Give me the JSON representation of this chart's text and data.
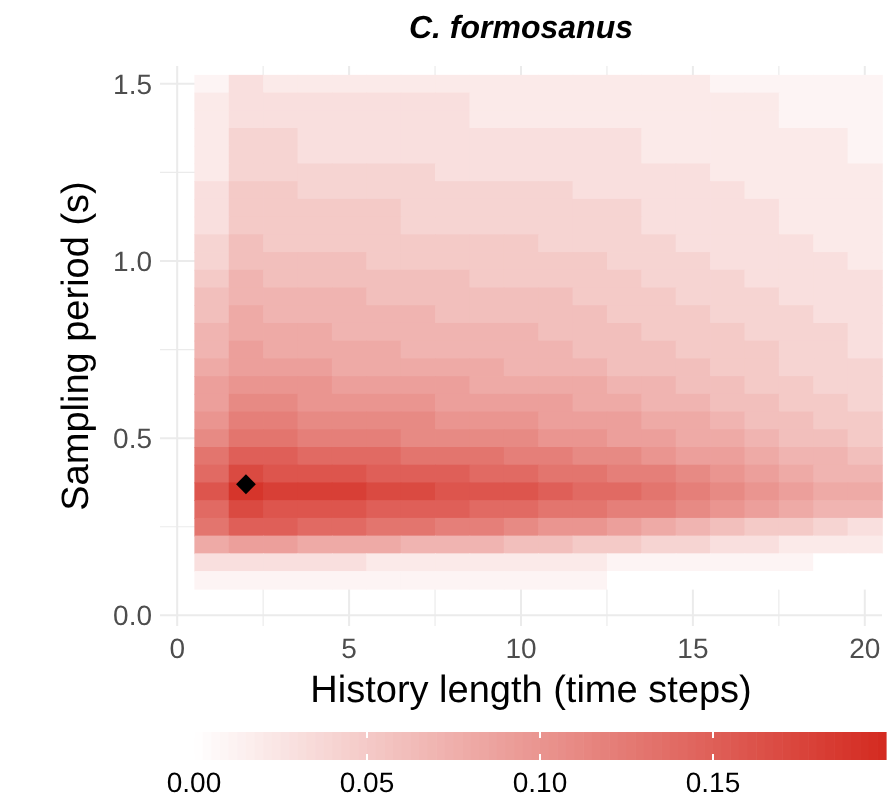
{
  "chart_data": {
    "type": "heatmap",
    "title": "C. formosanus",
    "xlabel": "History length (time steps)",
    "ylabel": "Sampling period (s)",
    "x": [
      1,
      2,
      3,
      4,
      5,
      6,
      7,
      8,
      9,
      10,
      11,
      12,
      13,
      14,
      15,
      16,
      17,
      18,
      19,
      20
    ],
    "y": [
      1.5,
      1.45,
      1.4,
      1.35,
      1.3,
      1.25,
      1.2,
      1.15,
      1.1,
      1.05,
      1.0,
      0.95,
      0.9,
      0.85,
      0.8,
      0.75,
      0.7,
      0.65,
      0.6,
      0.55,
      0.5,
      0.45,
      0.4,
      0.35,
      0.3,
      0.25,
      0.2,
      0.15,
      0.1
    ],
    "cells": [
      [
        0.01,
        0.03,
        0.02,
        0.02,
        0.02,
        0.02,
        0.02,
        0.02,
        0.02,
        0.02,
        0.02,
        0.02,
        0.02,
        0.02,
        0.02,
        0.01,
        0.01,
        0.01,
        0.01,
        0.01
      ],
      [
        0.02,
        0.03,
        0.03,
        0.03,
        0.03,
        0.03,
        0.03,
        0.03,
        0.02,
        0.02,
        0.02,
        0.02,
        0.02,
        0.02,
        0.02,
        0.02,
        0.02,
        0.01,
        0.01,
        0.01
      ],
      [
        0.02,
        0.03,
        0.03,
        0.03,
        0.03,
        0.03,
        0.03,
        0.03,
        0.02,
        0.02,
        0.02,
        0.02,
        0.02,
        0.02,
        0.02,
        0.02,
        0.02,
        0.01,
        0.01,
        0.01
      ],
      [
        0.02,
        0.04,
        0.04,
        0.03,
        0.03,
        0.03,
        0.03,
        0.03,
        0.03,
        0.03,
        0.03,
        0.03,
        0.03,
        0.02,
        0.02,
        0.02,
        0.02,
        0.02,
        0.02,
        0.01
      ],
      [
        0.02,
        0.04,
        0.04,
        0.03,
        0.03,
        0.03,
        0.03,
        0.03,
        0.03,
        0.03,
        0.03,
        0.03,
        0.03,
        0.02,
        0.02,
        0.02,
        0.02,
        0.02,
        0.02,
        0.01
      ],
      [
        0.02,
        0.04,
        0.04,
        0.04,
        0.04,
        0.04,
        0.04,
        0.03,
        0.03,
        0.03,
        0.03,
        0.03,
        0.03,
        0.03,
        0.03,
        0.02,
        0.02,
        0.02,
        0.02,
        0.02
      ],
      [
        0.03,
        0.05,
        0.05,
        0.04,
        0.04,
        0.04,
        0.04,
        0.04,
        0.04,
        0.04,
        0.04,
        0.03,
        0.03,
        0.03,
        0.03,
        0.03,
        0.02,
        0.02,
        0.02,
        0.02
      ],
      [
        0.03,
        0.05,
        0.05,
        0.05,
        0.05,
        0.05,
        0.04,
        0.04,
        0.04,
        0.04,
        0.04,
        0.04,
        0.04,
        0.03,
        0.03,
        0.03,
        0.03,
        0.02,
        0.02,
        0.02
      ],
      [
        0.03,
        0.05,
        0.05,
        0.05,
        0.05,
        0.05,
        0.04,
        0.04,
        0.04,
        0.04,
        0.04,
        0.04,
        0.04,
        0.03,
        0.03,
        0.03,
        0.03,
        0.02,
        0.02,
        0.02
      ],
      [
        0.04,
        0.06,
        0.05,
        0.05,
        0.05,
        0.05,
        0.05,
        0.05,
        0.05,
        0.05,
        0.04,
        0.04,
        0.04,
        0.04,
        0.03,
        0.03,
        0.03,
        0.03,
        0.02,
        0.02
      ],
      [
        0.04,
        0.06,
        0.06,
        0.06,
        0.06,
        0.05,
        0.05,
        0.05,
        0.05,
        0.05,
        0.05,
        0.05,
        0.04,
        0.04,
        0.04,
        0.03,
        0.03,
        0.03,
        0.03,
        0.02
      ],
      [
        0.05,
        0.07,
        0.06,
        0.06,
        0.06,
        0.06,
        0.06,
        0.06,
        0.05,
        0.05,
        0.05,
        0.05,
        0.05,
        0.04,
        0.04,
        0.04,
        0.03,
        0.03,
        0.03,
        0.03
      ],
      [
        0.06,
        0.07,
        0.07,
        0.07,
        0.07,
        0.06,
        0.06,
        0.06,
        0.06,
        0.06,
        0.06,
        0.05,
        0.05,
        0.05,
        0.04,
        0.04,
        0.04,
        0.03,
        0.03,
        0.03
      ],
      [
        0.06,
        0.08,
        0.07,
        0.07,
        0.07,
        0.07,
        0.07,
        0.06,
        0.06,
        0.06,
        0.06,
        0.06,
        0.05,
        0.05,
        0.05,
        0.04,
        0.04,
        0.04,
        0.03,
        0.03
      ],
      [
        0.07,
        0.08,
        0.08,
        0.08,
        0.07,
        0.07,
        0.07,
        0.07,
        0.07,
        0.07,
        0.06,
        0.06,
        0.06,
        0.05,
        0.05,
        0.05,
        0.04,
        0.04,
        0.04,
        0.03
      ],
      [
        0.07,
        0.09,
        0.08,
        0.08,
        0.08,
        0.08,
        0.07,
        0.07,
        0.07,
        0.07,
        0.07,
        0.06,
        0.06,
        0.06,
        0.05,
        0.05,
        0.05,
        0.04,
        0.04,
        0.03
      ],
      [
        0.08,
        0.09,
        0.09,
        0.09,
        0.08,
        0.08,
        0.08,
        0.08,
        0.08,
        0.07,
        0.07,
        0.07,
        0.06,
        0.06,
        0.06,
        0.05,
        0.05,
        0.04,
        0.04,
        0.04
      ],
      [
        0.09,
        0.1,
        0.1,
        0.1,
        0.09,
        0.09,
        0.09,
        0.09,
        0.08,
        0.08,
        0.08,
        0.08,
        0.07,
        0.07,
        0.06,
        0.06,
        0.05,
        0.05,
        0.04,
        0.04
      ],
      [
        0.09,
        0.11,
        0.11,
        0.1,
        0.1,
        0.1,
        0.1,
        0.09,
        0.09,
        0.09,
        0.09,
        0.08,
        0.08,
        0.07,
        0.07,
        0.06,
        0.06,
        0.05,
        0.05,
        0.04
      ],
      [
        0.1,
        0.12,
        0.12,
        0.11,
        0.11,
        0.11,
        0.11,
        0.1,
        0.1,
        0.1,
        0.09,
        0.09,
        0.09,
        0.08,
        0.08,
        0.07,
        0.06,
        0.06,
        0.05,
        0.05
      ],
      [
        0.11,
        0.13,
        0.13,
        0.12,
        0.12,
        0.12,
        0.11,
        0.11,
        0.11,
        0.11,
        0.1,
        0.1,
        0.09,
        0.09,
        0.08,
        0.08,
        0.07,
        0.06,
        0.06,
        0.05
      ],
      [
        0.13,
        0.15,
        0.15,
        0.14,
        0.14,
        0.14,
        0.13,
        0.13,
        0.13,
        0.12,
        0.12,
        0.11,
        0.11,
        0.1,
        0.09,
        0.09,
        0.08,
        0.07,
        0.07,
        0.06
      ],
      [
        0.14,
        0.17,
        0.16,
        0.16,
        0.16,
        0.15,
        0.15,
        0.15,
        0.14,
        0.14,
        0.13,
        0.13,
        0.12,
        0.12,
        0.11,
        0.1,
        0.09,
        0.08,
        0.07,
        0.07
      ],
      [
        0.16,
        0.19,
        0.18,
        0.18,
        0.18,
        0.17,
        0.17,
        0.16,
        0.16,
        0.16,
        0.15,
        0.14,
        0.14,
        0.13,
        0.12,
        0.11,
        0.1,
        0.09,
        0.08,
        0.08
      ],
      [
        0.14,
        0.17,
        0.16,
        0.16,
        0.16,
        0.15,
        0.15,
        0.15,
        0.14,
        0.14,
        0.13,
        0.13,
        0.12,
        0.12,
        0.11,
        0.1,
        0.09,
        0.08,
        0.07,
        0.07
      ],
      [
        0.13,
        0.15,
        0.15,
        0.14,
        0.14,
        0.13,
        0.13,
        0.12,
        0.12,
        0.11,
        0.1,
        0.1,
        0.09,
        0.08,
        0.07,
        0.06,
        0.05,
        0.05,
        0.04,
        0.03
      ],
      [
        0.08,
        0.09,
        0.09,
        0.08,
        0.08,
        0.08,
        0.07,
        0.07,
        0.07,
        0.06,
        0.06,
        0.05,
        0.05,
        0.04,
        0.04,
        0.03,
        0.03,
        0.02,
        0.02,
        0.02
      ],
      [
        0.03,
        0.03,
        0.03,
        0.03,
        0.03,
        0.02,
        0.02,
        0.02,
        0.02,
        0.02,
        0.02,
        0.02,
        0.01,
        0.01,
        0.01,
        0.01,
        0.01,
        0.01,
        0.0,
        0.0
      ],
      [
        0.01,
        0.01,
        0.01,
        0.01,
        0.01,
        0.01,
        0.01,
        0.01,
        0.01,
        0.01,
        0.01,
        0.01,
        0.0,
        0.0,
        0.0,
        0.0,
        0.0,
        0.0,
        0.0,
        0.0
      ]
    ],
    "clim": [
      0,
      0.2
    ],
    "cticks": [
      {
        "value": 0,
        "label": "0.00"
      },
      {
        "value": 0.05,
        "label": "0.05"
      },
      {
        "value": 0.1,
        "label": "0.10"
      },
      {
        "value": 0.15,
        "label": "0.15"
      }
    ],
    "xlim": [
      -0.5,
      20.5
    ],
    "xticks": [
      0,
      5,
      10,
      15,
      20
    ],
    "ylim": [
      -0.03,
      1.55
    ],
    "yticks": [
      {
        "value": 0,
        "label": "0.0"
      },
      {
        "value": 0.5,
        "label": "0.5"
      },
      {
        "value": 1,
        "label": "1.0"
      },
      {
        "value": 1.5,
        "label": "1.5"
      }
    ],
    "series": [
      {
        "type": "scatter",
        "x": [
          2
        ],
        "values": [
          0.37
        ],
        "color": "#000000",
        "marker": "diamond"
      }
    ],
    "grid": true
  }
}
